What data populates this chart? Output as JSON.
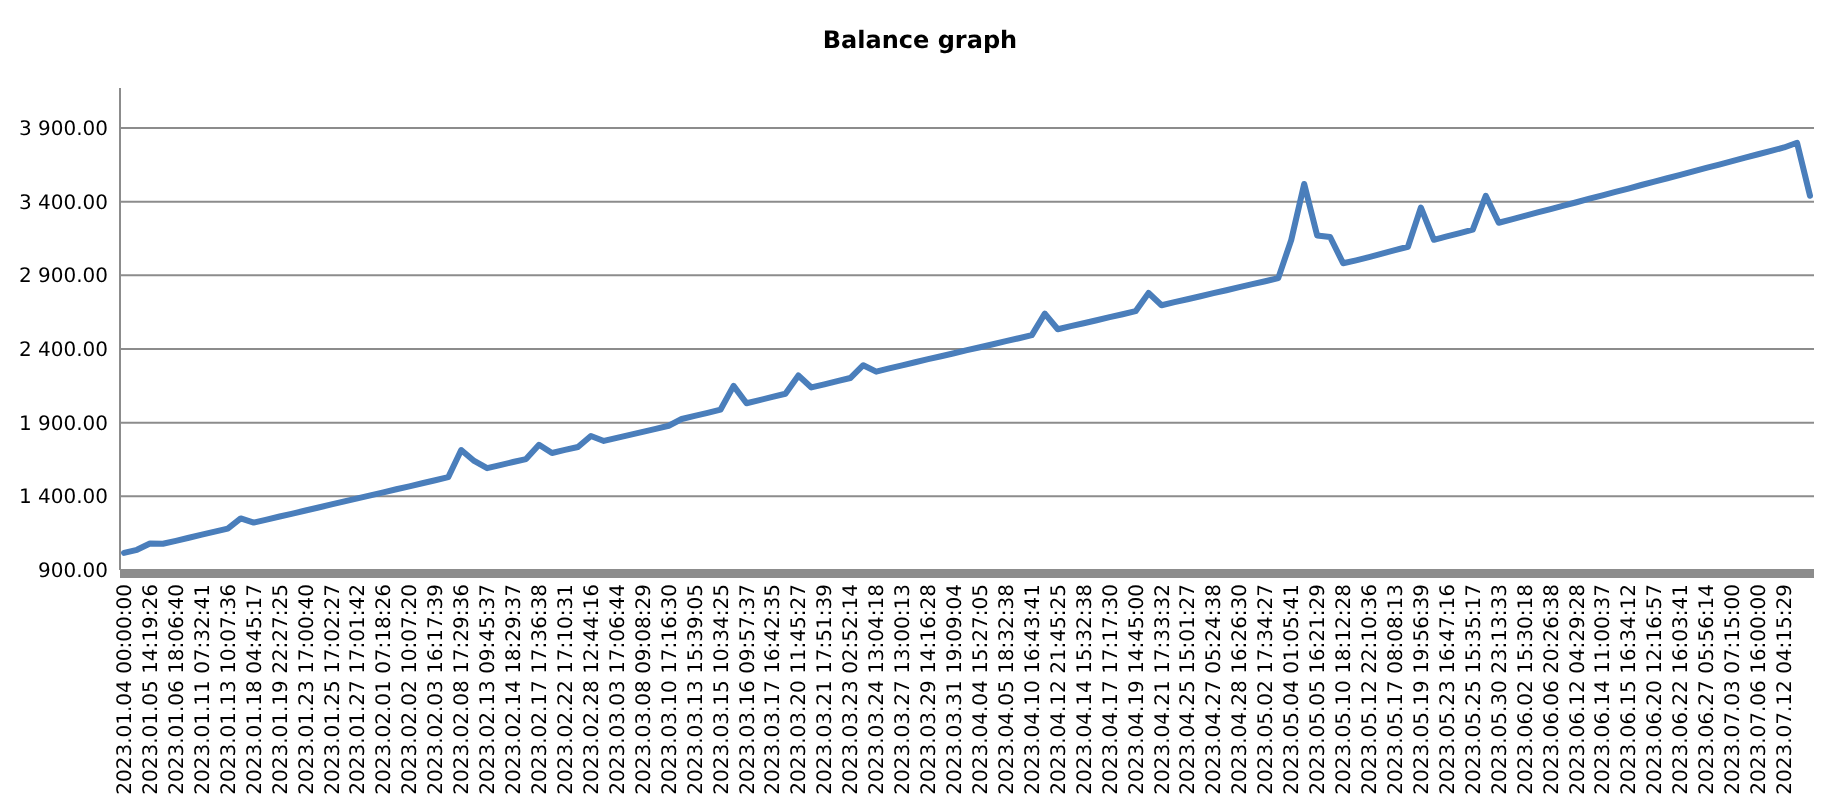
{
  "chart_data": {
    "type": "line",
    "title": "Balance graph",
    "categories": [
      "2023.01.04 00:00:00",
      null,
      "2023.01.05 14:19:26",
      null,
      "2023.01.06 18:06:40",
      null,
      "2023.01.11 07:32:41",
      null,
      "2023.01.13 10:07:36",
      null,
      "2023.01.18 04:45:17",
      null,
      "2023.01.19 22:27:25",
      null,
      "2023.01.23 17:00:40",
      null,
      "2023.01.25 17:02:27",
      null,
      "2023.01.27 17:01:42",
      null,
      "2023.02.01 07:18:26",
      null,
      "2023.02.02 10:07:20",
      null,
      "2023.02.03 16:17:39",
      null,
      "2023.02.08 17:29:36",
      null,
      "2023.02.13 09:45:37",
      null,
      "2023.02.14 18:29:37",
      null,
      "2023.02.17 17:36:38",
      null,
      "2023.02.22 17:10:31",
      null,
      "2023.02.28 12:44:16",
      null,
      "2023.03.03 17:06:44",
      null,
      "2023.03.08 09:08:29",
      null,
      "2023.03.10 17:16:30",
      null,
      "2023.03.13 15:39:05",
      null,
      "2023.03.15 10:34:25",
      null,
      "2023.03.16 09:57:37",
      null,
      "2023.03.17 16:42:35",
      null,
      "2023.03.20 11:45:27",
      null,
      "2023.03.21 17:51:39",
      null,
      "2023.03.23 02:52:14",
      null,
      "2023.03.24 13:04:18",
      null,
      "2023.03.27 13:00:13",
      null,
      "2023.03.29 14:16:28",
      null,
      "2023.03.31 19:09:04",
      null,
      "2023.04.04 15:27:05",
      null,
      "2023.04.05 18:32:38",
      null,
      "2023.04.10 16:43:41",
      null,
      "2023.04.12 21:45:25",
      null,
      "2023.04.14 15:32:38",
      null,
      "2023.04.17 17:17:30",
      null,
      "2023.04.19 14:45:00",
      null,
      "2023.04.21 17:33:32",
      null,
      "2023.04.25 15:01:27",
      null,
      "2023.04.27 05:24:38",
      null,
      "2023.04.28 16:26:30",
      null,
      "2023.05.02 17:34:27",
      null,
      "2023.05.04 01:05:41",
      null,
      "2023.05.05 16:21:29",
      null,
      "2023.05.10 18:12:28",
      null,
      "2023.05.12 22:10:36",
      null,
      "2023.05.17 08:08:13",
      null,
      "2023.05.19 19:56:39",
      null,
      "2023.05.23 16:47:16",
      null,
      "2023.05.25 15:35:17",
      null,
      "2023.05.30 23:13:33",
      null,
      "2023.06.02 15:30:18",
      null,
      "2023.06.06 20:26:38",
      null,
      "2023.06.12 04:29:28",
      null,
      "2023.06.14 11:00:37",
      null,
      "2023.06.15 16:34:12",
      null,
      "2023.06.20 12:16:57",
      null,
      "2023.06.22 16:03:41",
      null,
      "2023.06.27 05:56:14",
      null,
      "2023.07.03 07:15:00",
      null,
      "2023.07.06 16:00:00",
      null,
      "2023.07.12 04:15:29",
      null,
      null
    ],
    "values": [
      1016,
      1037,
      1080,
      1078,
      1098,
      1119,
      1140,
      1160,
      1181,
      1250,
      1222,
      1242,
      1263,
      1283,
      1304,
      1324,
      1345,
      1366,
      1386,
      1407,
      1427,
      1448,
      1468,
      1489,
      1509,
      1530,
      1714,
      1640,
      1591,
      1612,
      1633,
      1653,
      1750,
      1694,
      1715,
      1735,
      1810,
      1776,
      1797,
      1817,
      1838,
      1858,
      1879,
      1925,
      1946,
      1967,
      1989,
      2150,
      2032,
      2053,
      2075,
      2096,
      2220,
      2139,
      2160,
      2182,
      2203,
      2290,
      2246,
      2268,
      2289,
      2310,
      2331,
      2351,
      2371,
      2392,
      2412,
      2432,
      2453,
      2473,
      2494,
      2640,
      2534,
      2555,
      2575,
      2595,
      2616,
      2636,
      2657,
      2780,
      2697,
      2718,
      2738,
      2758,
      2779,
      2799,
      2820,
      2840,
      2860,
      2881,
      3140,
      3520,
      3170,
      3160,
      2982,
      3002,
      3024,
      3048,
      3071,
      3094,
      3360,
      3141,
      3164,
      3187,
      3210,
      3440,
      3257,
      3280,
      3303,
      3327,
      3350,
      3373,
      3396,
      3420,
      3443,
      3466,
      3489,
      3513,
      3536,
      3559,
      3582,
      3606,
      3629,
      3652,
      3675,
      3699,
      3722,
      3745,
      3768,
      3800,
      3440
    ],
    "color": "#4a7ebb",
    "ylim": [
      900,
      3900
    ],
    "yticks": [
      {
        "value": 900,
        "label": "900.00"
      },
      {
        "value": 1400,
        "label": "1 400.00"
      },
      {
        "value": 1900,
        "label": "1 900.00"
      },
      {
        "value": 2400,
        "label": "2 400.00"
      },
      {
        "value": 2900,
        "label": "2 900.00"
      },
      {
        "value": 3400,
        "label": "3 400.00"
      },
      {
        "value": 3900,
        "label": "3 900.00"
      }
    ],
    "grid": "y"
  }
}
